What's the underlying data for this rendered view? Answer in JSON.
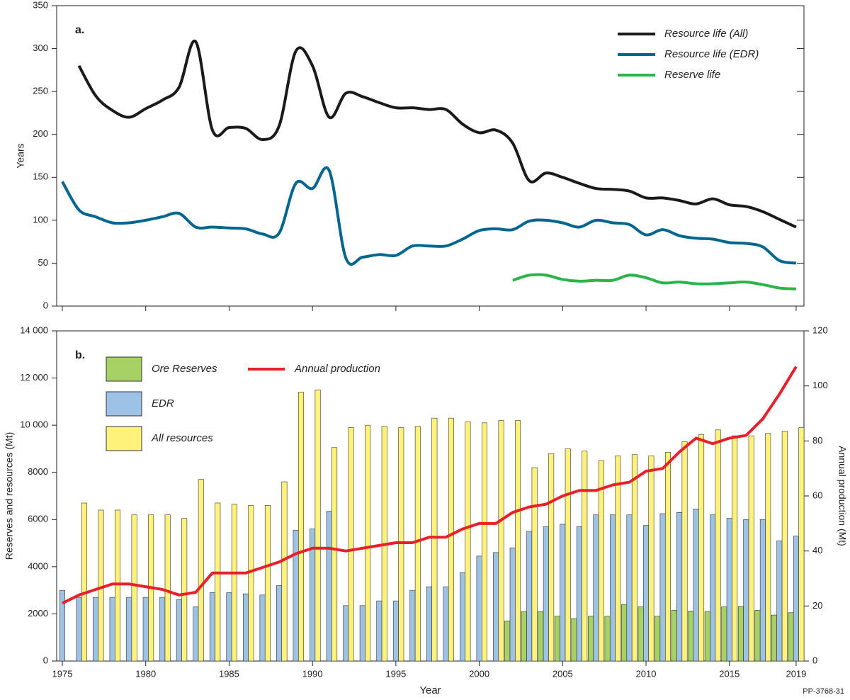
{
  "chart_data": [
    {
      "type": "line",
      "panel_label": "a.",
      "ylabel": "Years",
      "x": [
        1975,
        1976,
        1977,
        1978,
        1979,
        1980,
        1981,
        1982,
        1983,
        1984,
        1985,
        1986,
        1987,
        1988,
        1989,
        1990,
        1991,
        1992,
        1993,
        1994,
        1995,
        1996,
        1997,
        1998,
        1999,
        2000,
        2001,
        2002,
        2003,
        2004,
        2005,
        2006,
        2007,
        2008,
        2009,
        2010,
        2011,
        2012,
        2013,
        2014,
        2015,
        2016,
        2017,
        2018,
        2019
      ],
      "xlim": [
        1974.66,
        2019.47
      ],
      "ylim": [
        0,
        350
      ],
      "yticks": [
        0,
        50,
        100,
        150,
        200,
        250,
        300,
        350
      ],
      "legend": "upper right",
      "series": [
        {
          "name": "Resource life (All)",
          "color": "#1a1a1a",
          "values": [
            null,
            280,
            245,
            228,
            220,
            230,
            240,
            255,
            308,
            205,
            208,
            207,
            194,
            210,
            297,
            280,
            220,
            248,
            244,
            237,
            231,
            231,
            229,
            229,
            212,
            202,
            205,
            190,
            146,
            155,
            150,
            143,
            137,
            136,
            134,
            126,
            126,
            123,
            119,
            125,
            118,
            116,
            110,
            101,
            92
          ]
        },
        {
          "name": "Resource life (EDR)",
          "color": "#00668f",
          "values": [
            145,
            112,
            104,
            97,
            97,
            100,
            104,
            108,
            92,
            92,
            91,
            90,
            84,
            85,
            143,
            137,
            158,
            56,
            57,
            60,
            59,
            70,
            70,
            70,
            78,
            88,
            90,
            89,
            99,
            100,
            97,
            92,
            100,
            97,
            95,
            83,
            89,
            82,
            79,
            78,
            74,
            73,
            69,
            53,
            50
          ]
        },
        {
          "name": "Reserve life",
          "color": "#2db34a",
          "values": [
            null,
            null,
            null,
            null,
            null,
            null,
            null,
            null,
            null,
            null,
            null,
            null,
            null,
            null,
            null,
            null,
            null,
            null,
            null,
            null,
            null,
            null,
            null,
            null,
            null,
            null,
            null,
            30,
            36,
            36,
            31,
            29,
            30,
            30,
            36,
            33,
            27,
            28,
            26,
            26,
            27,
            28,
            25,
            21,
            20
          ]
        }
      ]
    },
    {
      "type": "bar",
      "panel_label": "b.",
      "ylabel": "Reserves and resources (Mt)",
      "y2label": "Annual production (Mt)",
      "xlabel": "Year",
      "x": [
        1975,
        1976,
        1977,
        1978,
        1979,
        1980,
        1981,
        1982,
        1983,
        1984,
        1985,
        1986,
        1987,
        1988,
        1989,
        1990,
        1991,
        1992,
        1993,
        1994,
        1995,
        1996,
        1997,
        1998,
        1999,
        2000,
        2001,
        2002,
        2003,
        2004,
        2005,
        2006,
        2007,
        2008,
        2009,
        2010,
        2011,
        2012,
        2013,
        2014,
        2015,
        2016,
        2017,
        2018,
        2019
      ],
      "xlim": [
        1974.66,
        2019.47
      ],
      "xticks": [
        1975,
        1980,
        1985,
        1990,
        1995,
        2000,
        2005,
        2010,
        2015,
        2019
      ],
      "ylim": [
        0,
        14000
      ],
      "yticks": [
        0,
        2000,
        4000,
        6000,
        8000,
        {
          "value": 10000,
          "label": "10 000"
        },
        {
          "value": 12000,
          "label": "12 000"
        },
        {
          "value": 14000,
          "label": "14 000"
        }
      ],
      "y2lim": [
        0,
        120
      ],
      "y2ticks": [
        0,
        20,
        40,
        60,
        80,
        100,
        120
      ],
      "legend": "upper left",
      "series": [
        {
          "name": "Ore Reserves",
          "type": "bar",
          "color": "#a6d163",
          "values": [
            null,
            null,
            null,
            null,
            null,
            null,
            null,
            null,
            null,
            null,
            null,
            null,
            null,
            null,
            null,
            null,
            null,
            null,
            null,
            null,
            null,
            null,
            null,
            null,
            null,
            null,
            null,
            1700,
            2100,
            2100,
            1900,
            1800,
            1900,
            1900,
            2400,
            2300,
            1900,
            2150,
            2120,
            2100,
            2300,
            2320,
            2150,
            1950,
            2050
          ]
        },
        {
          "name": "EDR",
          "type": "bar",
          "color": "#9ec2e6",
          "values": [
            3000,
            2700,
            2700,
            2700,
            2700,
            2700,
            2700,
            2600,
            2300,
            2900,
            2900,
            2850,
            2800,
            3200,
            5550,
            5600,
            6350,
            2350,
            2350,
            2550,
            2550,
            3000,
            3150,
            3150,
            3750,
            4450,
            4600,
            4800,
            5500,
            5700,
            5800,
            5700,
            6200,
            6200,
            6200,
            5750,
            6250,
            6300,
            6450,
            6200,
            6050,
            6000,
            6000,
            5100,
            5300
          ]
        },
        {
          "name": "All resources",
          "type": "bar",
          "color": "#fff27a",
          "values": [
            null,
            6700,
            6400,
            6400,
            6200,
            6200,
            6200,
            6050,
            7700,
            6700,
            6650,
            6600,
            6600,
            7600,
            11400,
            11500,
            9050,
            9900,
            10000,
            9950,
            9900,
            9950,
            10300,
            10300,
            10150,
            10100,
            10200,
            10200,
            8200,
            8800,
            9000,
            8900,
            8500,
            8700,
            8750,
            8700,
            8850,
            9300,
            9600,
            9800,
            9550,
            9550,
            9650,
            9750,
            9900
          ]
        },
        {
          "name": "Annual production",
          "type": "line",
          "axis": "y2",
          "color": "#e8202a",
          "values": [
            21,
            24,
            26,
            28,
            28,
            27,
            26,
            24,
            25,
            32,
            32,
            32,
            34,
            36,
            39,
            41,
            41,
            40,
            41,
            42,
            43,
            43,
            45,
            45,
            48,
            50,
            50,
            54,
            56,
            57,
            60,
            62,
            62,
            64,
            65,
            69,
            70,
            76,
            81,
            79,
            81,
            82,
            88,
            97,
            107
          ]
        }
      ]
    }
  ],
  "footer": "PP-3768-31"
}
